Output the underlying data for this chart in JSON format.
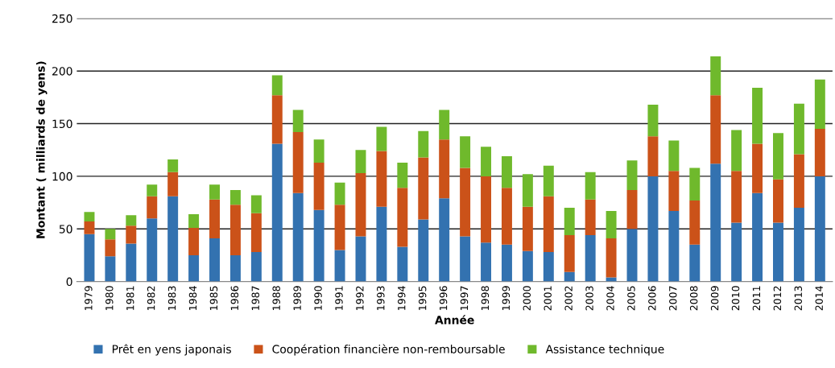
{
  "chart_data": {
    "type": "bar",
    "stacked": true,
    "xlabel": "Année",
    "ylabel": "Montant ( milliards de yens)",
    "categories": [
      "1979",
      "1980",
      "1981",
      "1982",
      "1983",
      "1984",
      "1985",
      "1986",
      "1987",
      "1988",
      "1989",
      "1990",
      "1991",
      "1992",
      "1993",
      "1994",
      "1995",
      "1996",
      "1997",
      "1998",
      "1999",
      "2000",
      "2001",
      "2002",
      "2003",
      "2004",
      "2005",
      "2006",
      "2007",
      "2008",
      "2009",
      "2010",
      "2011",
      "2012",
      "2013",
      "2014"
    ],
    "series": [
      {
        "name": "Prêt en yens japonais",
        "color": "#3372b0",
        "values": [
          45,
          24,
          36,
          60,
          81,
          25,
          41,
          25,
          28,
          131,
          84,
          68,
          30,
          43,
          71,
          33,
          59,
          79,
          43,
          37,
          35,
          29,
          28,
          9,
          44,
          4,
          50,
          100,
          67,
          35,
          112,
          56,
          84,
          56,
          70,
          100
        ]
      },
      {
        "name": "Coopération financière non-remboursable",
        "color": "#cb5219",
        "values": [
          12,
          16,
          17,
          21,
          23,
          26,
          37,
          48,
          37,
          46,
          58,
          45,
          43,
          60,
          53,
          56,
          59,
          56,
          65,
          63,
          54,
          42,
          53,
          35,
          34,
          37,
          37,
          38,
          38,
          42,
          65,
          49,
          47,
          41,
          51,
          45
        ]
      },
      {
        "name": "Assistance technique",
        "color": "#6fb92c",
        "values": [
          9,
          10,
          10,
          11,
          12,
          13,
          14,
          14,
          17,
          19,
          21,
          22,
          21,
          22,
          23,
          24,
          25,
          28,
          30,
          28,
          30,
          31,
          29,
          26,
          26,
          26,
          28,
          30,
          29,
          31,
          37,
          39,
          53,
          44,
          48,
          47
        ]
      }
    ],
    "ylim": [
      0,
      250
    ],
    "yticks": [
      0,
      50,
      100,
      150,
      200,
      250
    ],
    "grid": "y",
    "legend": "bottom"
  }
}
